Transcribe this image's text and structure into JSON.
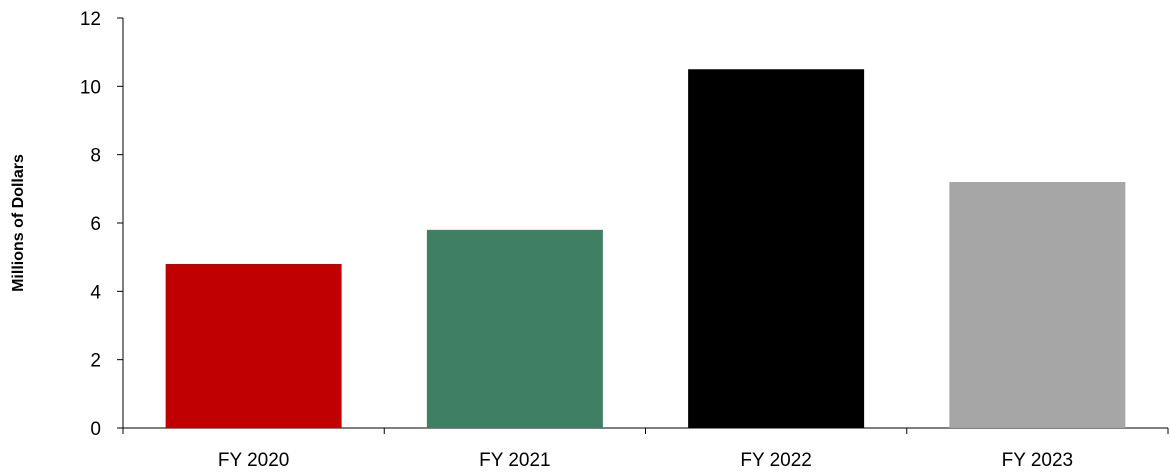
{
  "chart_data": {
    "type": "bar",
    "title": "",
    "xlabel": "",
    "ylabel": "Millions of Dollars",
    "categories": [
      "FY 2020",
      "FY 2021",
      "FY 2022",
      "FY 2023"
    ],
    "values": [
      4.8,
      5.8,
      10.5,
      7.2
    ],
    "bar_colors": [
      "#c00000",
      "#3f7f64",
      "#000000",
      "#a6a6a6"
    ],
    "ylim": [
      0,
      12
    ],
    "yticks": [
      "0",
      "2",
      "4",
      "6",
      "8",
      "10",
      "12"
    ],
    "grid": false,
    "legend": "none"
  }
}
